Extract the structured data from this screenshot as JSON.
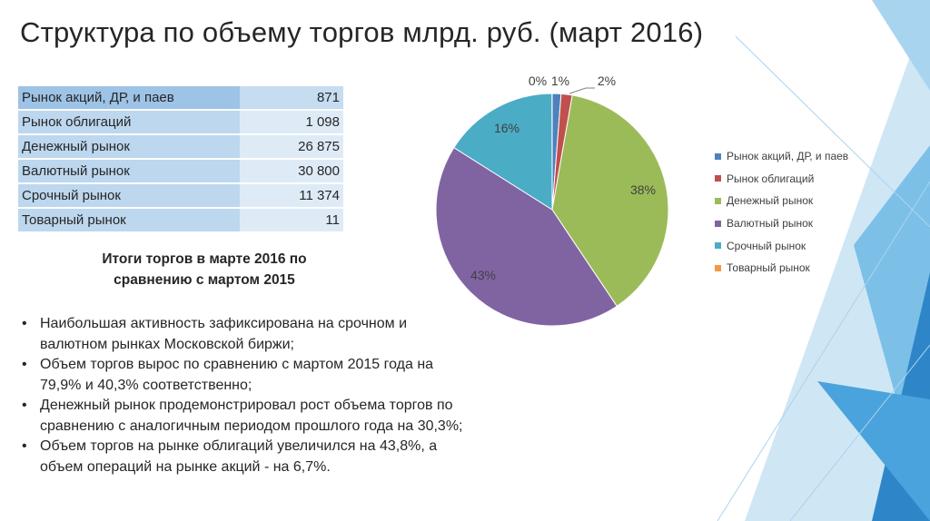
{
  "title": "Структура по объему торгов млрд. руб. (март 2016)",
  "table": {
    "rows": [
      {
        "name": "Рынок акций, ДР, и паев",
        "value": "871"
      },
      {
        "name": "Рынок облигаций",
        "value": "1 098"
      },
      {
        "name": "Денежный рынок",
        "value": "26 875"
      },
      {
        "name": "Валютный рынок",
        "value": "30 800"
      },
      {
        "name": "Срочный рынок",
        "value": "11 374"
      },
      {
        "name": "Товарный рынок",
        "value": "11"
      }
    ]
  },
  "subheading": "Итоги торгов в марте 2016 по сравнению с мартом 2015",
  "bullets": [
    "Наибольшая активность зафиксирована на срочном и валютном рынках Московской биржи;",
    "Объем торгов вырос по сравнению с мартом 2015 года на 79,9% и 40,3% соответственно;",
    " Денежный рынок продемонстрировал рост объема торгов по сравнению с аналогичным периодом прошлого года на 30,3%;",
    "Объем торгов на рынке облигаций увеличился на 43,8%, а объем операций на рынке акций - на 6,7%."
  ],
  "chart_data": {
    "type": "pie",
    "categories": [
      "Рынок акций, ДР, и паев",
      "Рынок облигаций",
      "Денежный рынок",
      "Валютный рынок",
      "Срочный рынок",
      "Товарный рынок"
    ],
    "values": [
      871,
      1098,
      26875,
      30800,
      11374,
      11
    ],
    "percent_labels": [
      "1%",
      "2%",
      "38%",
      "43%",
      "16%",
      "0%"
    ],
    "colors": [
      "#4f81bd",
      "#c0504d",
      "#9bbb59",
      "#8064a2",
      "#4bacc6",
      "#f79646"
    ],
    "legend_position": "right"
  }
}
